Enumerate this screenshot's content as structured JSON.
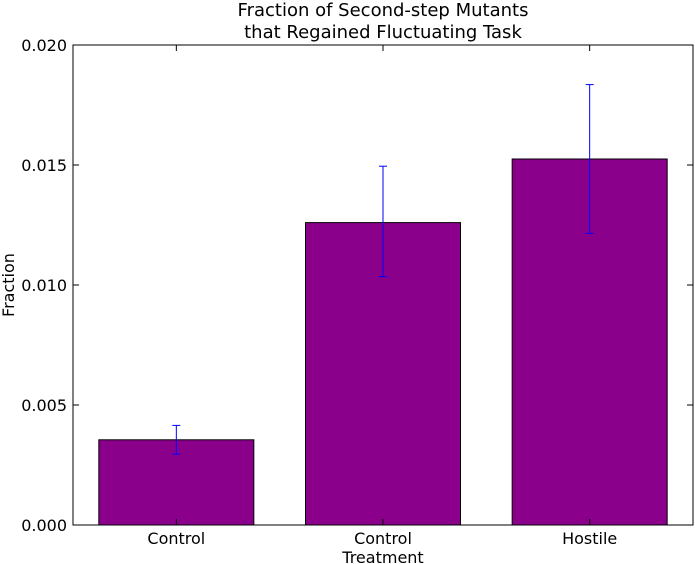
{
  "chart_data": {
    "type": "bar",
    "title_lines": [
      "Fraction of Second-step Mutants",
      "that Regained Fluctuating Task"
    ],
    "xlabel": "Treatment",
    "ylabel": "Fraction",
    "categories": [
      "Control",
      "Control",
      "Hostile"
    ],
    "values": [
      0.00355,
      0.0126,
      0.01525
    ],
    "errors_low": [
      0.0006,
      0.00225,
      0.0031
    ],
    "errors_high": [
      0.0006,
      0.00235,
      0.0031
    ],
    "ylim": [
      0,
      0.02
    ],
    "yticks": [
      0.0,
      0.005,
      0.01,
      0.015,
      0.02
    ],
    "ytick_labels": [
      "0.000",
      "0.005",
      "0.010",
      "0.015",
      "0.020"
    ],
    "grid": false,
    "bar_color": "#8b008b",
    "error_color": "#0000ff"
  }
}
